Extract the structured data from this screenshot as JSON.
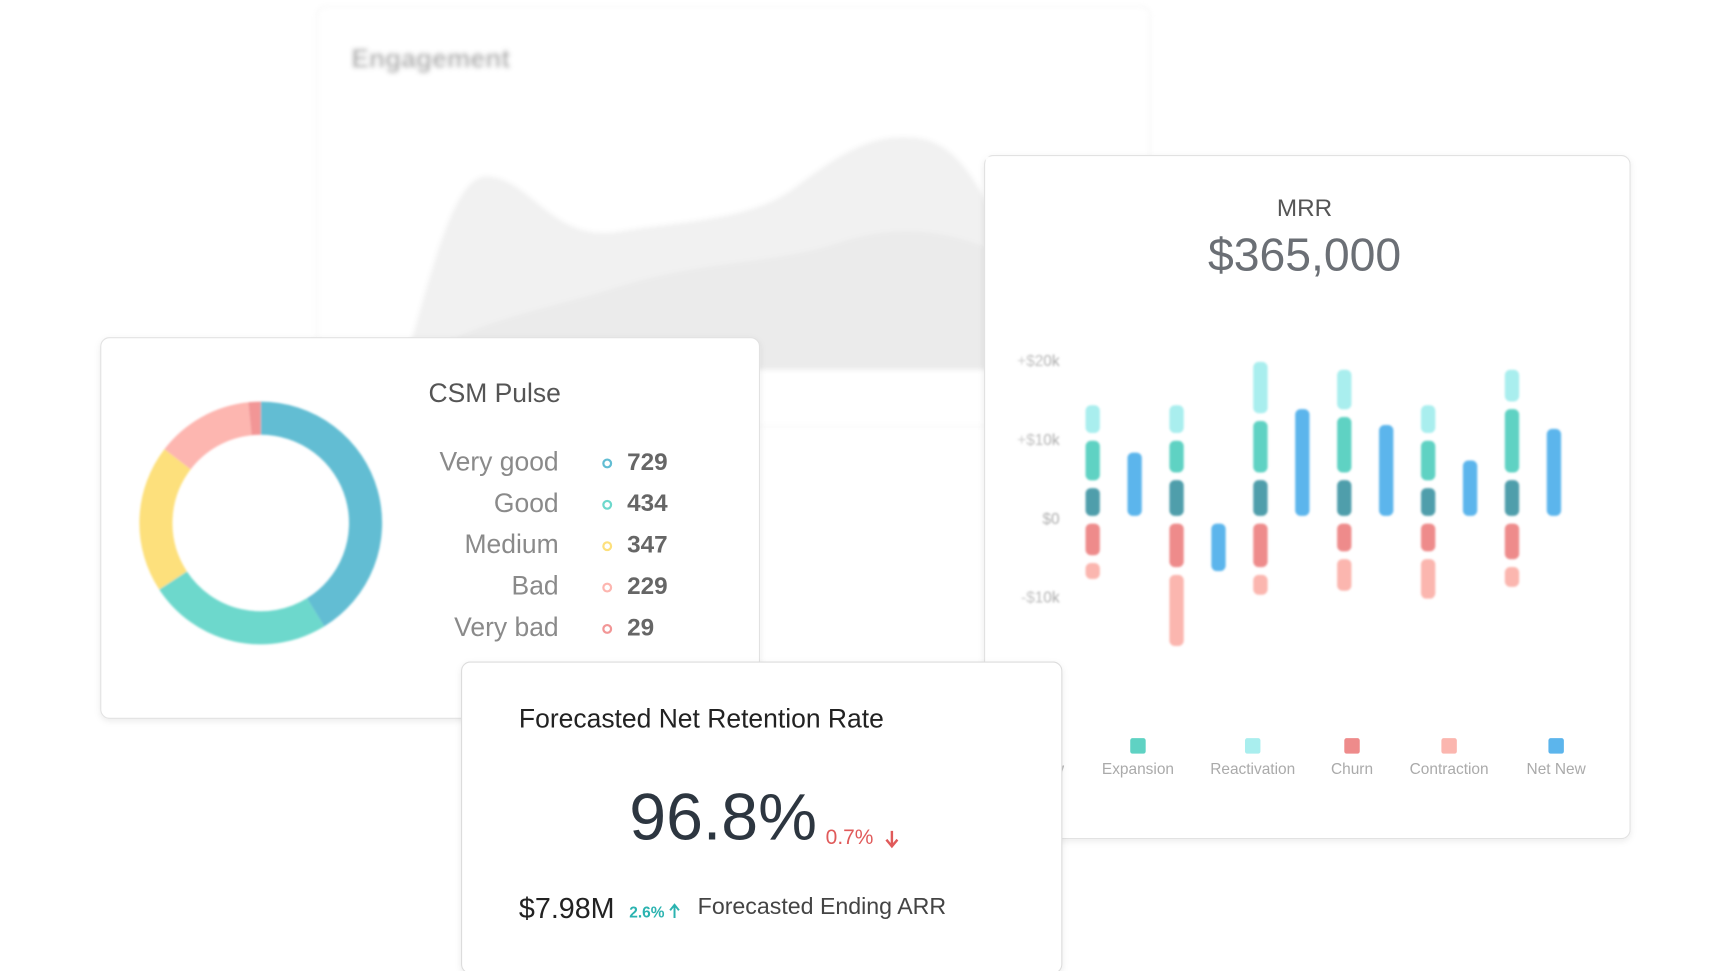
{
  "engagement": {
    "title": "Engagement"
  },
  "chart_data": [
    {
      "type": "donut",
      "title": "CSM Pulse",
      "categories": [
        "Very good",
        "Good",
        "Medium",
        "Bad",
        "Very bad"
      ],
      "values": [
        729,
        434,
        347,
        229,
        29
      ],
      "colors": [
        "#62bdd3",
        "#6dd8cc",
        "#fde07c",
        "#fdb6b0",
        "#f29696"
      ]
    },
    {
      "type": "bar",
      "title": "MRR",
      "subtitle": "$365,000",
      "stacked": true,
      "categories": [
        null,
        null,
        null,
        null,
        null,
        null
      ],
      "ylim": [
        -20000,
        24000
      ],
      "yticks": [
        {
          "value": 20000,
          "label": "+$20k"
        },
        {
          "value": 10000,
          "label": "+$10k"
        },
        {
          "value": 0,
          "label": "$0"
        },
        {
          "value": -10000,
          "label": "-$10k"
        }
      ],
      "series": [
        {
          "name": "New",
          "color": "#4f9eab",
          "stack": 0,
          "values": [
            4500,
            5500,
            5500,
            5500,
            4500,
            5500
          ]
        },
        {
          "name": "Expansion",
          "color": "#5fd2c3",
          "stack": 0,
          "values": [
            6000,
            5000,
            7500,
            8000,
            6000,
            9000
          ]
        },
        {
          "name": "Reactivation",
          "color": "#a9eeee",
          "stack": 0,
          "values": [
            4500,
            4500,
            7500,
            6000,
            4500,
            5000
          ]
        },
        {
          "name": "Churn",
          "color": "#ee8b8b",
          "stack": 0,
          "values": [
            -5000,
            -6500,
            -6500,
            -4500,
            -4500,
            -5500
          ]
        },
        {
          "name": "Contraction",
          "color": "#fbb6af",
          "stack": 0,
          "values": [
            -3000,
            -10000,
            -3500,
            -5000,
            -6000,
            -3500
          ]
        },
        {
          "name": "Net New",
          "color": "#5cb5ec",
          "stack": 1,
          "values": [
            9000,
            -7000,
            14500,
            12500,
            8000,
            12000
          ]
        }
      ]
    }
  ],
  "forecast": {
    "title": "Forecasted Net Retention Rate",
    "value": "96.8%",
    "change": "0.7%",
    "arr": "$7.98M",
    "arr_change": "2.6%",
    "arr_label": "Forecasted Ending ARR"
  }
}
